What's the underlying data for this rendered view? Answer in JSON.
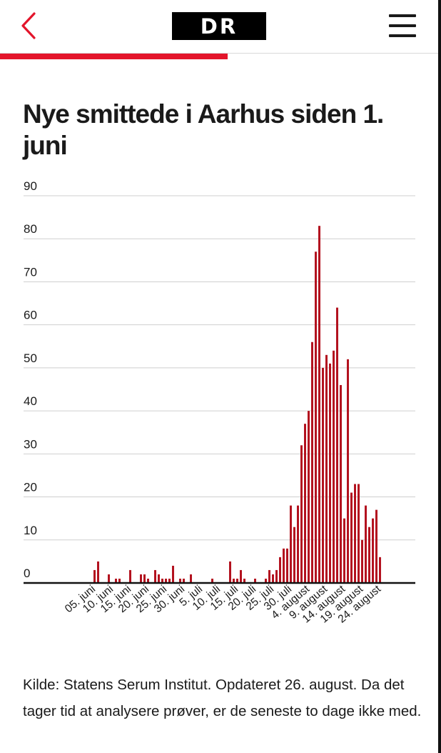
{
  "header": {
    "back_icon": "chevron-left-icon",
    "logo_text": "DR",
    "menu_icon": "hamburger-menu-icon",
    "reading_progress": 0.52,
    "accent_color": "#e3152b"
  },
  "article": {
    "title": "Nye smittede i Aarhus siden 1. juni",
    "footnote": "Kilde: Statens Serum Institut.  Opdateret 26. august. Da det tager tid at analysere prøver, er de seneste to dage ikke med."
  },
  "chart_data": {
    "type": "bar",
    "color": "#b3121f",
    "title": "",
    "xlabel": "",
    "ylabel": "",
    "ylim": [
      0,
      90
    ],
    "yticks": [
      0,
      10,
      20,
      30,
      40,
      50,
      60,
      70,
      80,
      90
    ],
    "grid": true,
    "legend": "none",
    "tick_labels": [
      {
        "label": "05. juni",
        "index": 4
      },
      {
        "label": "10. juni",
        "index": 9
      },
      {
        "label": "15. juni",
        "index": 14
      },
      {
        "label": "20. juni",
        "index": 19
      },
      {
        "label": "25. juni",
        "index": 24
      },
      {
        "label": "30. juni",
        "index": 29
      },
      {
        "label": "5. juli",
        "index": 34
      },
      {
        "label": "10. juli",
        "index": 39
      },
      {
        "label": "15. juli",
        "index": 44
      },
      {
        "label": "20. juli",
        "index": 49
      },
      {
        "label": "25. juli",
        "index": 54
      },
      {
        "label": "30. juli",
        "index": 59
      },
      {
        "label": "4. august",
        "index": 64
      },
      {
        "label": "9. august",
        "index": 69
      },
      {
        "label": "14. august",
        "index": 74
      },
      {
        "label": "19. august",
        "index": 79
      },
      {
        "label": "24. august",
        "index": 84
      }
    ],
    "values": [
      0,
      0,
      0,
      0,
      3,
      5,
      0,
      0,
      2,
      0,
      1,
      1,
      0,
      0,
      3,
      0,
      0,
      2,
      2,
      1,
      0,
      3,
      2,
      1,
      1,
      1,
      4,
      0,
      1,
      1,
      0,
      2,
      0,
      0,
      0,
      0,
      0,
      1,
      0,
      0,
      0,
      0,
      5,
      1,
      1,
      3,
      1,
      0,
      0,
      1,
      0,
      0,
      1,
      3,
      2,
      3,
      6,
      8,
      8,
      18,
      13,
      18,
      32,
      37,
      40,
      56,
      77,
      83,
      50,
      53,
      51,
      54,
      64,
      46,
      15,
      52,
      21,
      23,
      23,
      10,
      18,
      13,
      15,
      17,
      6
    ]
  }
}
